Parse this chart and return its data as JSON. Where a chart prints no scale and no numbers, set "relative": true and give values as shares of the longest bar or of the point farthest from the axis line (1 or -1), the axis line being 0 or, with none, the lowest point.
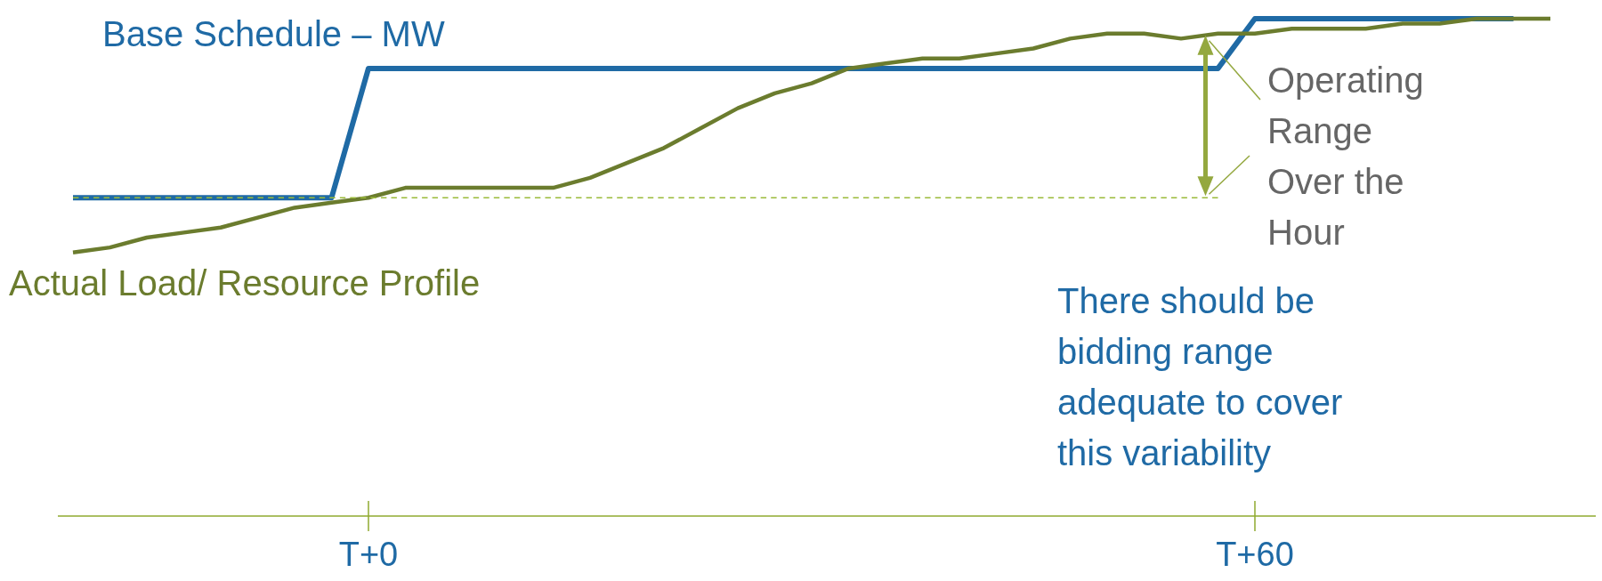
{
  "chart_data": {
    "type": "line",
    "relative": true,
    "grid": false,
    "categories": [
      null,
      null,
      null,
      null,
      null,
      null,
      null,
      null,
      "T+0",
      null,
      null,
      null,
      null,
      null,
      null,
      null,
      null,
      null,
      null,
      null,
      null,
      null,
      null,
      null,
      null,
      null,
      null,
      null,
      null,
      null,
      null,
      null,
      "T+60",
      null,
      null,
      null,
      null,
      null,
      null,
      null,
      null
    ],
    "series": [
      {
        "name": "Base Schedule – MW",
        "color": "#1f6aa5",
        "values": [
          0.64,
          0.64,
          0.64,
          0.64,
          0.64,
          0.64,
          0.64,
          0.64,
          0.9,
          0.9,
          0.9,
          0.9,
          0.9,
          0.9,
          0.9,
          0.9,
          0.9,
          0.9,
          0.9,
          0.9,
          0.9,
          0.9,
          0.9,
          0.9,
          0.9,
          0.9,
          0.9,
          0.9,
          0.9,
          0.9,
          0.9,
          0.9,
          1.0,
          1.0,
          1.0,
          1.0,
          1.0,
          1.0,
          1.0,
          1.0,
          null
        ]
      },
      {
        "name": "Actual Load/ Resource Profile",
        "color": "#6b7c2e",
        "values": [
          0.53,
          0.54,
          0.56,
          0.57,
          0.58,
          0.6,
          0.62,
          0.63,
          0.64,
          0.66,
          0.66,
          0.66,
          0.66,
          0.66,
          0.68,
          0.71,
          0.74,
          0.78,
          0.82,
          0.85,
          0.87,
          0.9,
          0.91,
          0.92,
          0.92,
          0.93,
          0.94,
          0.96,
          0.97,
          0.97,
          0.96,
          0.97,
          0.97,
          0.98,
          0.98,
          0.98,
          0.99,
          0.99,
          1.0,
          1.0,
          1.0
        ]
      },
      {
        "color": "#9bbb3a",
        "line_style": "dashed",
        "values": [
          0.64,
          0.64,
          0.64,
          0.64,
          0.64,
          0.64,
          0.64,
          0.64,
          0.64,
          0.64,
          0.64,
          0.64,
          0.64,
          0.64,
          0.64,
          0.64,
          0.64,
          0.64,
          0.64,
          0.64,
          0.64,
          0.64,
          0.64,
          0.64,
          0.64,
          0.64,
          0.64,
          0.64,
          0.64,
          0.64,
          0.64,
          0.64,
          null,
          null,
          null,
          null,
          null,
          null,
          null,
          null,
          null
        ]
      }
    ],
    "annotations": [
      "Operating Range Over the Hour",
      "There should be bidding range adequate to cover this variability"
    ]
  }
}
